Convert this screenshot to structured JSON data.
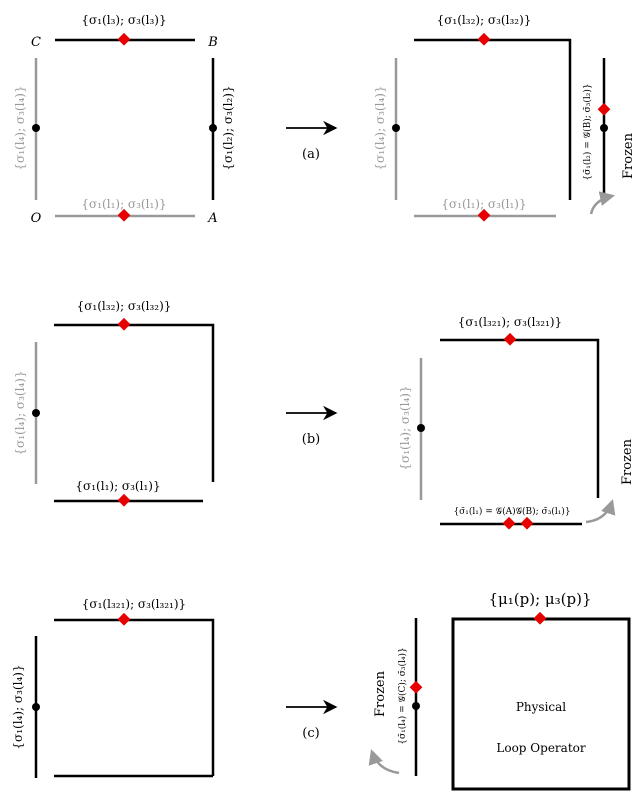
{
  "panel_a": {
    "corner_c": "C",
    "corner_b": "B",
    "corner_o": "O",
    "corner_a": "A",
    "edge_top": "{σ₁(l₃); σ₃(l₃)}",
    "edge_left": "{σ₁(l₄); σ₃(l₄)}",
    "edge_right": "{σ₁(l₂); σ₃(l₂)}",
    "edge_bottom": "{σ₁(l₁); σ₃(l₁)}",
    "arrow_label": "(a)",
    "result_top": "{σ₁(l₃₂); σ₃(l₃₂)}",
    "result_left": "{σ₁(l₄); σ₃(l₄)}",
    "result_bottom": "{σ₁(l₁); σ₃(l₁)}",
    "result_right": "{σ̄₁(l₂) = 𝒢(B); σ̄₃(l₂)}",
    "frozen": "Frozen"
  },
  "panel_b": {
    "edge_top": "{σ₁(l₃₂); σ₃(l₃₂)}",
    "edge_left": "{σ₁(l₄); σ₃(l₄)}",
    "edge_bottom": "{σ₁(l₁); σ₃(l₁)}",
    "arrow_label": "(b)",
    "result_top": "{σ₁(l₃₂₁); σ₃(l₃₂₁)}",
    "result_left": "{σ₁(l₄); σ₃(l₄)}",
    "result_bottom": "{σ̄₁(l₁) = 𝒢(A)𝒢(B); σ̄₃(l₁)}",
    "frozen": "Frozen"
  },
  "panel_c": {
    "edge_top": "{σ₁(l₃₂₁); σ₃(l₃₂₁)}",
    "edge_left": "{σ₁(l₄); σ₃(l₄)}",
    "arrow_label": "(c)",
    "result_left": "{σ̄₁(l₄) = 𝒢(C); σ̄₃(l₄)}",
    "frozen": "Frozen",
    "result_top": "{μ₁(p); μ₃(p)}",
    "center_line1": "Physical",
    "center_line2": "Loop Operator"
  },
  "colors": {
    "black_edge": "#000000",
    "gray_edge": "#999999",
    "marker_red": "#e60000"
  }
}
